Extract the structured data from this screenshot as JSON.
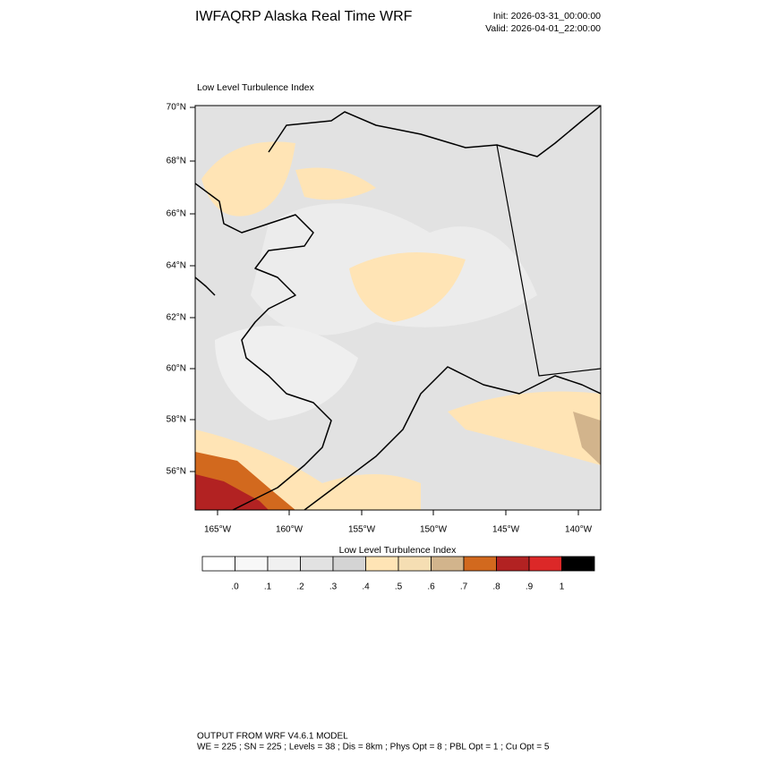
{
  "header": {
    "title": "IWFAQRP Alaska Real Time WRF",
    "init": "Init: 2026-03-31_00:00:00",
    "valid": "Valid: 2026-04-01_22:00:00"
  },
  "map": {
    "title": "Low Level Turbulence Index",
    "lat_labels": [
      "70°N",
      "68°N",
      "66°N",
      "64°N",
      "62°N",
      "60°N",
      "58°N",
      "56°N"
    ],
    "lon_labels": [
      "165°W",
      "160°W",
      "155°W",
      "150°W",
      "145°W",
      "140°W"
    ]
  },
  "colorbar": {
    "title": "Low Level Turbulence Index",
    "colors": [
      "#ffffff",
      "#f8f8f8",
      "#f0f0f0",
      "#e2e2e2",
      "#d4d4d4",
      "#ffe4b5",
      "#f5deb3",
      "#d2b48c",
      "#d2691e",
      "#b22222",
      "#dc2828",
      "#000000"
    ],
    "labels": [
      ".0",
      ".1",
      ".2",
      ".3",
      ".4",
      ".5",
      ".6",
      ".7",
      ".8",
      ".9",
      "1"
    ]
  },
  "footer": {
    "line1": "OUTPUT FROM WRF V4.6.1 MODEL",
    "line2": "WE = 225 ; SN = 225 ; Levels = 38 ; Dis = 8km ; Phys Opt = 8 ; PBL Opt = 1 ; Cu Opt = 5"
  }
}
